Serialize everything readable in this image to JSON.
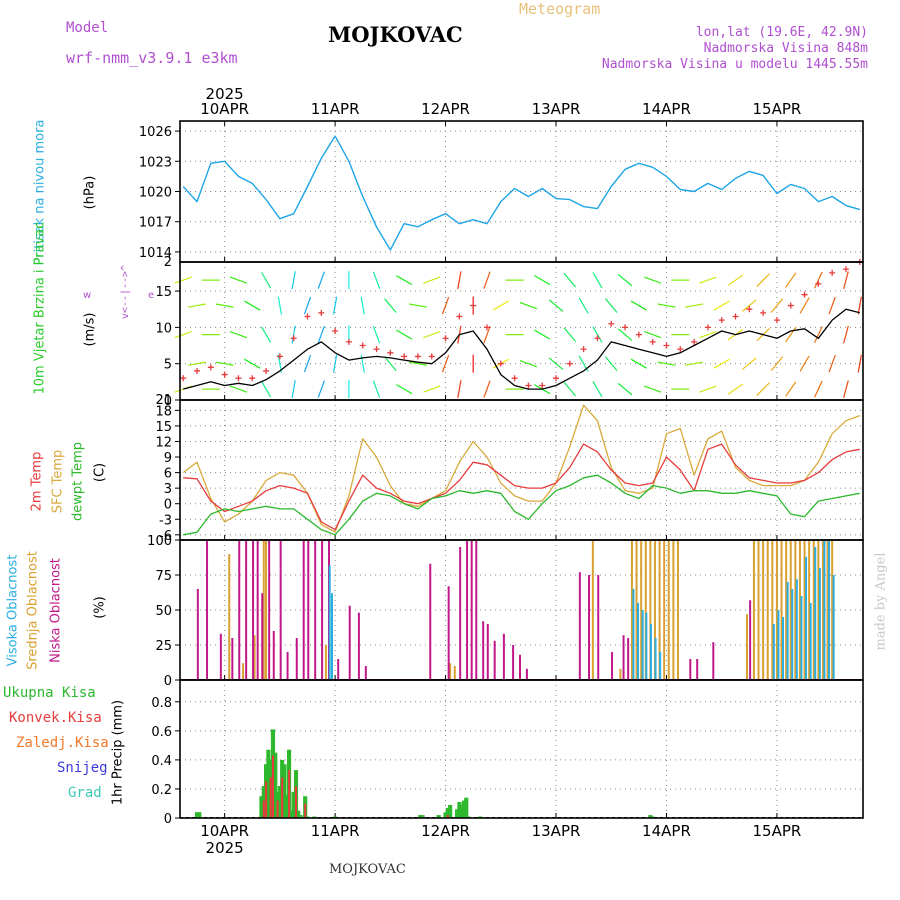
{
  "header": {
    "model_label": "Model",
    "model_name": "wrf-nmm_v3.9.1  e3km",
    "station_title": "MOJKOVAC",
    "product": "Meteogram",
    "coords": "lon,lat (19.6E, 42.9N)",
    "elevation": "Nadmorska Visina 848m",
    "model_elevation": "Nadmorska Visina u modelu 1445.55m"
  },
  "footer": {
    "station": "MOJKOVAC",
    "credit": "made by Angel"
  },
  "colors": {
    "pressure": "#1ea5e6",
    "temp2m": "#e63c3c",
    "sfc_temp": "#d9a93c",
    "dewpt": "#2db82d",
    "wind_speed": "#000000",
    "gust": "#e63c3c",
    "high_cloud": "#2aaee0",
    "mid_cloud": "#d9a030",
    "low_cloud": "#c0188a",
    "total_precip": "#2db82d",
    "conv_precip": "#e63c3c",
    "frozen_precip": "#f07828",
    "snow": "#3c3cdc",
    "graupel": "#3cc8b4",
    "label_pressure": "#2aaee0",
    "label_wind": "#2ccb2c",
    "label_model": "#b04fd0",
    "label_meteogram": "#e8c07a"
  },
  "chart_data": [
    {
      "type": "line",
      "name": "Sea level pressure",
      "title": "Pritisak na nivou mora",
      "ylabel": "(hPa)",
      "ylim": [
        1013,
        1027
      ],
      "yticks": [
        1014,
        1017,
        1020,
        1023,
        1026
      ],
      "x_day_ticks": [
        "10APR",
        "11APR",
        "12APR",
        "13APR",
        "14APR",
        "15APR"
      ],
      "year": "2025",
      "x_hours": [
        -9,
        -6,
        -3,
        0,
        3,
        6,
        9,
        12,
        15,
        18,
        21,
        24,
        27,
        30,
        33,
        36,
        39,
        42,
        45,
        48,
        51,
        54,
        57,
        60,
        63,
        66,
        69,
        72,
        75,
        78,
        81,
        84,
        87,
        90,
        93,
        96,
        99,
        102,
        105,
        108,
        111,
        114,
        117,
        120,
        123,
        126,
        129,
        132,
        135,
        138
      ],
      "series": [
        {
          "name": "Pritisak",
          "values": [
            1020.5,
            1019.0,
            1022.8,
            1023.0,
            1021.5,
            1020.8,
            1019.2,
            1017.3,
            1017.8,
            1020.5,
            1023.3,
            1025.5,
            1023.0,
            1019.5,
            1016.5,
            1014.2,
            1016.8,
            1016.5,
            1017.2,
            1017.8,
            1016.8,
            1017.2,
            1016.8,
            1019.0,
            1020.3,
            1019.5,
            1020.3,
            1019.3,
            1019.2,
            1018.5,
            1018.3,
            1020.5,
            1022.2,
            1022.8,
            1022.4,
            1021.5,
            1020.2,
            1020.0,
            1020.8,
            1020.2,
            1021.3,
            1022.0,
            1021.6,
            1019.8,
            1020.7,
            1020.3,
            1019.0,
            1019.5,
            1018.6,
            1018.2
          ]
        }
      ]
    },
    {
      "type": "line",
      "name": "10m wind",
      "title": "10m Vjetar Brzina i Pravac",
      "ylabel": "(m/s)",
      "ylim": [
        0,
        19
      ],
      "yticks": [
        0,
        5,
        10,
        15
      ],
      "top_tick": "2",
      "compass": {
        "west": "w",
        "east": "e",
        "north": "^",
        "south": "v",
        "sep": "<--|-->"
      },
      "x_hours": [
        -9,
        -6,
        -3,
        0,
        3,
        6,
        9,
        12,
        15,
        18,
        21,
        24,
        27,
        30,
        33,
        36,
        39,
        42,
        45,
        48,
        51,
        54,
        57,
        60,
        63,
        66,
        69,
        72,
        75,
        78,
        81,
        84,
        87,
        90,
        93,
        96,
        99,
        102,
        105,
        108,
        111,
        114,
        117,
        120,
        123,
        126,
        129,
        132,
        135,
        138
      ],
      "series": [
        {
          "name": "Brzina",
          "values": [
            1.5,
            2.0,
            2.5,
            2.0,
            2.3,
            2.0,
            2.8,
            4.0,
            5.5,
            7.0,
            8.0,
            6.5,
            5.5,
            5.8,
            6.0,
            5.8,
            5.5,
            5.2,
            5.0,
            6.5,
            9.0,
            9.5,
            7.0,
            3.5,
            2.0,
            1.5,
            1.5,
            2.0,
            3.0,
            4.0,
            5.5,
            8.0,
            7.5,
            7.0,
            6.5,
            6.0,
            6.5,
            7.5,
            8.5,
            9.5,
            9.0,
            9.5,
            9.0,
            8.5,
            9.5,
            9.8,
            8.5,
            11.0,
            12.5,
            12.0
          ]
        },
        {
          "name": "Udari",
          "values": [
            3.0,
            4.0,
            4.5,
            3.5,
            3.0,
            3.0,
            4.0,
            6.0,
            8.5,
            11.5,
            12.0,
            9.5,
            8.0,
            7.5,
            7.0,
            6.5,
            6.0,
            6.0,
            6.0,
            8.5,
            11.5,
            13.0,
            10.0,
            5.0,
            3.0,
            2.0,
            2.0,
            3.0,
            5.0,
            7.0,
            8.5,
            10.5,
            10.0,
            9.0,
            8.0,
            7.5,
            7.0,
            8.0,
            10.0,
            11.0,
            11.5,
            12.5,
            12.0,
            11.0,
            13.0,
            14.5,
            16.0,
            17.5,
            18.0,
            19.0
          ]
        },
        {
          "name": "Pravac",
          "values": [
            250,
            260,
            270,
            280,
            290,
            300,
            330,
            350,
            10,
            20,
            20,
            10,
            0,
            350,
            340,
            320,
            300,
            280,
            250,
            200,
            190,
            180,
            200,
            240,
            270,
            290,
            300,
            310,
            320,
            330,
            330,
            320,
            310,
            300,
            290,
            280,
            270,
            260,
            250,
            240,
            235,
            230,
            225,
            220,
            215,
            210,
            205,
            200,
            195,
            190
          ]
        }
      ]
    },
    {
      "type": "line",
      "name": "Temperature",
      "ylabel": "(C)",
      "series_labels": [
        "2m Temp",
        "SFC Temp",
        "dewpt Temp"
      ],
      "ylim": [
        -7,
        20
      ],
      "yticks": [
        -6,
        -3,
        0,
        3,
        6,
        9,
        12,
        15,
        18
      ],
      "top_tick": "21",
      "x_hours": [
        -9,
        -6,
        -3,
        0,
        3,
        6,
        9,
        12,
        15,
        18,
        21,
        24,
        27,
        30,
        33,
        36,
        39,
        42,
        45,
        48,
        51,
        54,
        57,
        60,
        63,
        66,
        69,
        72,
        75,
        78,
        81,
        84,
        87,
        90,
        93,
        96,
        99,
        102,
        105,
        108,
        111,
        114,
        117,
        120,
        123,
        126,
        129,
        132,
        135,
        138
      ],
      "series": [
        {
          "name": "2m Temp",
          "values": [
            5.0,
            4.8,
            0.5,
            -1.5,
            -0.5,
            0.5,
            2.5,
            3.5,
            3.0,
            2.0,
            -3.5,
            -5.0,
            0.5,
            5.5,
            3.0,
            2.0,
            0.5,
            0.0,
            1.0,
            2.0,
            4.5,
            8.0,
            7.5,
            5.5,
            3.5,
            3.0,
            3.0,
            4.0,
            7.0,
            11.5,
            10.0,
            6.5,
            4.0,
            3.5,
            4.0,
            9.0,
            6.5,
            2.5,
            10.5,
            11.5,
            7.5,
            5.0,
            4.5,
            4.0,
            4.0,
            4.5,
            6.0,
            8.5,
            10.0,
            10.5
          ]
        },
        {
          "name": "SFC Temp",
          "values": [
            6.0,
            8.0,
            1.0,
            -3.5,
            -2.0,
            0.5,
            4.5,
            6.0,
            5.5,
            2.0,
            -4.0,
            -5.5,
            1.5,
            12.5,
            9.0,
            3.5,
            0.0,
            -0.5,
            1.0,
            2.5,
            8.0,
            12.0,
            9.0,
            4.0,
            1.5,
            0.5,
            0.5,
            4.0,
            11.0,
            19.0,
            16.0,
            7.0,
            2.5,
            2.0,
            3.0,
            13.5,
            14.5,
            5.5,
            12.5,
            14.0,
            7.0,
            4.5,
            3.5,
            3.5,
            3.5,
            4.5,
            8.0,
            13.5,
            16.0,
            17.0
          ]
        },
        {
          "name": "dewpt Temp",
          "values": [
            -6.0,
            -5.5,
            -2.0,
            -1.0,
            -1.5,
            -1.0,
            -0.5,
            -1.0,
            -1.0,
            -3.0,
            -5.0,
            -6.0,
            -3.0,
            0.5,
            2.0,
            1.5,
            0.0,
            -1.0,
            1.0,
            1.5,
            2.5,
            2.0,
            2.5,
            2.0,
            -1.5,
            -3.0,
            0.0,
            2.5,
            3.5,
            5.0,
            5.5,
            4.0,
            2.0,
            1.0,
            3.5,
            3.0,
            2.0,
            2.5,
            2.5,
            2.0,
            2.0,
            2.5,
            2.0,
            1.5,
            -2.0,
            -2.5,
            0.5,
            1.0,
            1.5,
            2.0
          ]
        }
      ]
    },
    {
      "type": "bar",
      "name": "Cloud cover",
      "ylabel": "(%)",
      "series_labels": [
        "Visoka Oblacnost",
        "Srednja Oblacnost",
        "Niska Oblacnost"
      ],
      "ylim": [
        0,
        100
      ],
      "yticks": [
        0,
        25,
        50,
        75,
        100
      ],
      "low_bars": [
        [
          -6.0,
          65
        ],
        [
          -4.0,
          100
        ],
        [
          -1.0,
          33
        ],
        [
          1.5,
          30
        ],
        [
          3.0,
          100
        ],
        [
          4.5,
          100
        ],
        [
          6.0,
          100
        ],
        [
          7.0,
          100
        ],
        [
          8.0,
          62
        ],
        [
          9.5,
          100
        ],
        [
          10.5,
          35
        ],
        [
          12.0,
          100
        ],
        [
          13.5,
          20
        ],
        [
          15.5,
          30
        ],
        [
          17.0,
          100
        ],
        [
          18.0,
          100
        ],
        [
          19.5,
          100
        ],
        [
          21.0,
          100
        ],
        [
          22.5,
          100
        ],
        [
          24.5,
          15
        ],
        [
          27.0,
          53
        ],
        [
          29.0,
          48
        ],
        [
          30.5,
          10
        ],
        [
          44.5,
          83
        ],
        [
          48.5,
          67
        ],
        [
          51.0,
          95
        ],
        [
          52.5,
          100
        ],
        [
          53.5,
          100
        ],
        [
          54.5,
          100
        ],
        [
          56.0,
          42
        ],
        [
          57.0,
          40
        ],
        [
          58.5,
          28
        ],
        [
          60.5,
          33
        ],
        [
          62.5,
          25
        ],
        [
          64.0,
          18
        ],
        [
          65.5,
          8
        ],
        [
          77.0,
          77
        ],
        [
          79.0,
          75
        ],
        [
          81.0,
          75
        ],
        [
          84.0,
          20
        ],
        [
          86.5,
          32
        ],
        [
          87.5,
          30
        ],
        [
          101.0,
          15
        ],
        [
          102.5,
          15
        ],
        [
          106.0,
          27
        ],
        [
          114.0,
          57
        ]
      ],
      "mid_bars": [
        [
          1.0,
          90
        ],
        [
          4.0,
          12
        ],
        [
          6.5,
          32
        ],
        [
          8.5,
          100
        ],
        [
          9.0,
          100
        ],
        [
          22.0,
          25
        ],
        [
          49.0,
          12
        ],
        [
          50.0,
          10
        ],
        [
          80.0,
          100
        ],
        [
          86.0,
          8
        ],
        [
          88.5,
          100
        ],
        [
          89.5,
          100
        ],
        [
          90.5,
          100
        ],
        [
          91.5,
          100
        ],
        [
          92.5,
          100
        ],
        [
          93.5,
          100
        ],
        [
          94.5,
          100
        ],
        [
          95.5,
          100
        ],
        [
          96.5,
          100
        ],
        [
          97.5,
          100
        ],
        [
          98.5,
          100
        ],
        [
          113.5,
          47
        ],
        [
          115.0,
          100
        ],
        [
          116.0,
          100
        ],
        [
          117.0,
          100
        ],
        [
          118.0,
          100
        ],
        [
          119.0,
          100
        ],
        [
          120.0,
          100
        ],
        [
          121.0,
          100
        ],
        [
          122.0,
          100
        ],
        [
          123.0,
          100
        ],
        [
          124.0,
          100
        ],
        [
          125.0,
          100
        ],
        [
          126.0,
          100
        ],
        [
          127.0,
          100
        ],
        [
          128.0,
          100
        ],
        [
          129.0,
          100
        ],
        [
          130.0,
          100
        ],
        [
          131.0,
          100
        ],
        [
          132.0,
          100
        ]
      ],
      "high_bars": [
        [
          23.0,
          82
        ],
        [
          23.5,
          62
        ],
        [
          89.0,
          65
        ],
        [
          90.0,
          55
        ],
        [
          91.0,
          50
        ],
        [
          91.8,
          48
        ],
        [
          92.8,
          40
        ],
        [
          93.8,
          30
        ],
        [
          94.8,
          20
        ],
        [
          119.5,
          40
        ],
        [
          120.5,
          50
        ],
        [
          121.5,
          45
        ],
        [
          122.5,
          70
        ],
        [
          123.5,
          65
        ],
        [
          124.5,
          72
        ],
        [
          125.5,
          60
        ],
        [
          126.5,
          88
        ],
        [
          127.5,
          55
        ],
        [
          128.5,
          95
        ],
        [
          129.5,
          80
        ],
        [
          130.5,
          100
        ],
        [
          131.5,
          100
        ],
        [
          132.5,
          75
        ]
      ]
    },
    {
      "type": "bar",
      "name": "Precipitation",
      "ylabel": "1hr Precip (mm)",
      "series_labels": [
        "Ukupna Kisa",
        "Konvek.Kisa",
        "Zaledj.Kisa",
        "Snijeg",
        "Grad"
      ],
      "ylim": [
        0,
        0.95
      ],
      "yticks": [
        0,
        0.2,
        0.4,
        0.6,
        0.8
      ],
      "x_day_ticks": [
        "10APR",
        "11APR",
        "12APR",
        "13APR",
        "14APR",
        "15APR"
      ],
      "year": "2025",
      "total_bars": [
        [
          -6.0,
          0.04
        ],
        [
          -5.5,
          0.04
        ],
        [
          8.0,
          0.15
        ],
        [
          8.5,
          0.22
        ],
        [
          9.0,
          0.37
        ],
        [
          9.5,
          0.47
        ],
        [
          10.0,
          0.4
        ],
        [
          10.5,
          0.61
        ],
        [
          11.0,
          0.45
        ],
        [
          11.5,
          0.18
        ],
        [
          12.0,
          0.22
        ],
        [
          12.5,
          0.4
        ],
        [
          13.0,
          0.37
        ],
        [
          13.5,
          0.16
        ],
        [
          14.0,
          0.47
        ],
        [
          14.5,
          0.05
        ],
        [
          15.0,
          0.18
        ],
        [
          15.5,
          0.33
        ],
        [
          16.0,
          0.05
        ],
        [
          16.5,
          0.02
        ],
        [
          17.5,
          0.15
        ],
        [
          18.0,
          0.01
        ],
        [
          19.5,
          0.01
        ],
        [
          24.0,
          0.01
        ],
        [
          42.5,
          0.02
        ],
        [
          43.0,
          0.02
        ],
        [
          46.5,
          0.02
        ],
        [
          48.0,
          0.04
        ],
        [
          48.5,
          0.07
        ],
        [
          49.0,
          0.09
        ],
        [
          50.5,
          0.06
        ],
        [
          51.0,
          0.11
        ],
        [
          51.5,
          0.09
        ],
        [
          52.0,
          0.12
        ],
        [
          52.5,
          0.14
        ],
        [
          53.0,
          0.01
        ],
        [
          55.5,
          0.01
        ],
        [
          92.5,
          0.02
        ],
        [
          93.0,
          0.01
        ]
      ],
      "conv_bars": [
        [
          8.5,
          0.12
        ],
        [
          9.0,
          0.25
        ],
        [
          10.0,
          0.28
        ],
        [
          10.5,
          0.43
        ],
        [
          11.5,
          0.12
        ],
        [
          12.5,
          0.28
        ],
        [
          14.0,
          0.33
        ],
        [
          15.5,
          0.22
        ],
        [
          17.5,
          0.1
        ],
        [
          48.5,
          0.02
        ]
      ]
    }
  ]
}
